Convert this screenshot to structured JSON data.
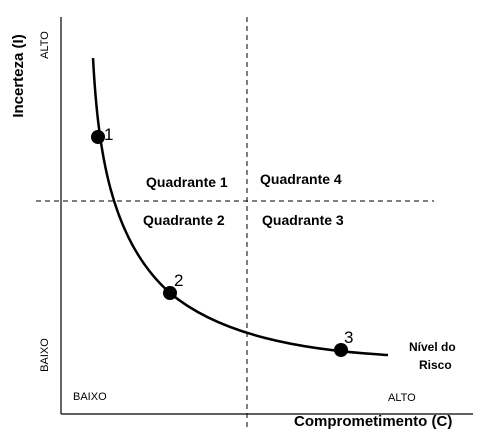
{
  "axes": {
    "y_label": "Incerteza (I)",
    "y_high": "ALTO",
    "y_low": "BAIXO",
    "x_label": "Comprometimento (C)",
    "x_low": "BAIXO",
    "x_high": "ALTO"
  },
  "quadrants": {
    "q1": "Quadrante 1",
    "q2": "Quadrante 2",
    "q3": "Quadrante 3",
    "q4": "Quadrante 4"
  },
  "curve": {
    "label_line1": "Nível do",
    "label_line2": "Risco"
  },
  "points": [
    {
      "label": "1"
    },
    {
      "label": "2"
    },
    {
      "label": "3"
    }
  ]
}
